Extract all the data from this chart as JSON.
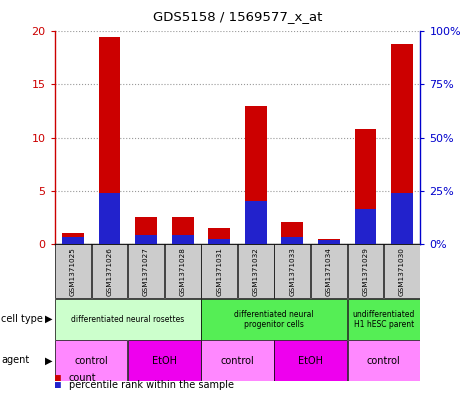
{
  "title": "GDS5158 / 1569577_x_at",
  "samples": [
    "GSM1371025",
    "GSM1371026",
    "GSM1371027",
    "GSM1371028",
    "GSM1371031",
    "GSM1371032",
    "GSM1371033",
    "GSM1371034",
    "GSM1371029",
    "GSM1371030"
  ],
  "counts": [
    1.0,
    19.5,
    2.5,
    2.5,
    1.5,
    13.0,
    2.0,
    0.4,
    10.8,
    18.8
  ],
  "percentile_ranks": [
    3.0,
    24.0,
    4.0,
    4.0,
    2.0,
    20.0,
    3.0,
    1.5,
    16.5,
    24.0
  ],
  "ylim_left": [
    0,
    20
  ],
  "ylim_right": [
    0,
    100
  ],
  "yticks_left": [
    0,
    5,
    10,
    15,
    20
  ],
  "yticks_right": [
    0,
    25,
    50,
    75,
    100
  ],
  "bar_color_red": "#cc0000",
  "bar_color_blue": "#2222cc",
  "bar_width": 0.6,
  "legend_count_color": "#cc0000",
  "legend_percentile_color": "#2222cc",
  "grid_color": "#999999",
  "sample_bg_color": "#cccccc",
  "left_axis_color": "#cc0000",
  "right_axis_color": "#0000cc",
  "cell_groups": [
    {
      "label": "differentiated neural rosettes",
      "start": 0,
      "end": 4,
      "color": "#ccffcc"
    },
    {
      "label": "differentiated neural\nprogenitor cells",
      "start": 4,
      "end": 8,
      "color": "#55ee55"
    },
    {
      "label": "undifferentiated\nH1 hESC parent",
      "start": 8,
      "end": 10,
      "color": "#55ee55"
    }
  ],
  "agent_groups": [
    {
      "label": "control",
      "start": 0,
      "end": 2,
      "color": "#ff88ff"
    },
    {
      "label": "EtOH",
      "start": 2,
      "end": 4,
      "color": "#ee00ee"
    },
    {
      "label": "control",
      "start": 4,
      "end": 6,
      "color": "#ff88ff"
    },
    {
      "label": "EtOH",
      "start": 6,
      "end": 8,
      "color": "#ee00ee"
    },
    {
      "label": "control",
      "start": 8,
      "end": 10,
      "color": "#ff88ff"
    }
  ]
}
